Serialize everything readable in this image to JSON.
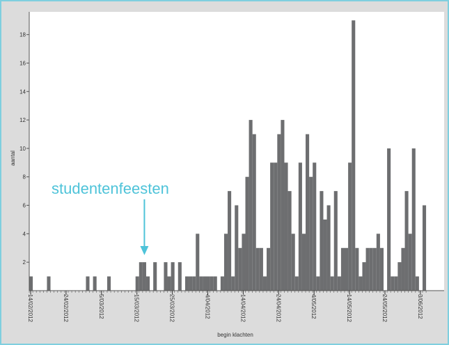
{
  "chart_data": {
    "type": "bar",
    "title": "",
    "xlabel": "begin klachten",
    "ylabel": "aantal",
    "ylim": [
      0,
      19.6
    ],
    "grid": false,
    "legend": "none",
    "colors": {
      "bar": "#6d6e70",
      "plot_bg": "#ffffff",
      "annotation": "#4ec3d9"
    },
    "yticks": [
      2,
      4,
      6,
      8,
      10,
      12,
      14,
      16,
      18
    ],
    "x_tick_labels": [
      {
        "label": "14/02/2012",
        "index": 0
      },
      {
        "label": "24/02/2012",
        "index": 10
      },
      {
        "label": "5/03/2012",
        "index": 20
      },
      {
        "label": "15/03/2012",
        "index": 30
      },
      {
        "label": "25/03/2012",
        "index": 40
      },
      {
        "label": "4/04/2012",
        "index": 50
      },
      {
        "label": "14/04/2012",
        "index": 60
      },
      {
        "label": "24/04/2012",
        "index": 70
      },
      {
        "label": "4/05/2012",
        "index": 80
      },
      {
        "label": "14/05/2012",
        "index": 90
      },
      {
        "label": "24/05/2012",
        "index": 100
      },
      {
        "label": "3/06/2012",
        "index": 110
      }
    ],
    "values": [
      1,
      0,
      0,
      0,
      0,
      1,
      0,
      0,
      0,
      0,
      0,
      0,
      0,
      0,
      0,
      0,
      1,
      0,
      1,
      0,
      0,
      0,
      1,
      0,
      0,
      0,
      0,
      0,
      0,
      0,
      1,
      2,
      2,
      1,
      0,
      2,
      0,
      0,
      2,
      1,
      2,
      0,
      2,
      0,
      1,
      1,
      1,
      4,
      1,
      1,
      1,
      1,
      1,
      0,
      1,
      4,
      7,
      1,
      6,
      3,
      4,
      8,
      12,
      11,
      3,
      3,
      1,
      3,
      9,
      9,
      11,
      12,
      9,
      7,
      4,
      1,
      9,
      4,
      11,
      8,
      9,
      1,
      7,
      5,
      6,
      1,
      7,
      1,
      3,
      3,
      9,
      19,
      3,
      1,
      2,
      3,
      3,
      3,
      4,
      3,
      0,
      10,
      1,
      1,
      2,
      3,
      7,
      4,
      10,
      1,
      0,
      6
    ],
    "annotation": {
      "text": "studentenfeesten",
      "index": 32
    }
  }
}
